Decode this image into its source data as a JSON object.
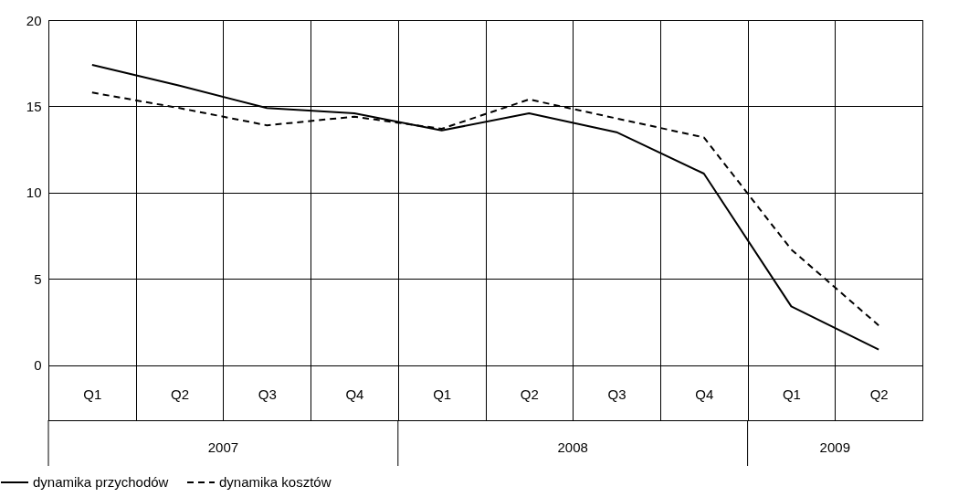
{
  "chart_data": {
    "type": "line",
    "categories": [
      "Q1",
      "Q2",
      "Q3",
      "Q4",
      "Q1",
      "Q2",
      "Q3",
      "Q4",
      "Q1",
      "Q2"
    ],
    "series": [
      {
        "name": "dynamika przychodów",
        "color": "#000000",
        "line_style": "solid",
        "values": [
          17.4,
          16.2,
          14.9,
          14.6,
          13.6,
          14.6,
          13.5,
          11.1,
          3.4,
          0.9
        ]
      },
      {
        "name": "dynamika kosztów",
        "color": "#000000",
        "line_style": "dashed",
        "values": [
          15.8,
          14.9,
          13.9,
          14.4,
          13.7,
          15.4,
          14.3,
          13.2,
          6.7,
          2.3
        ]
      }
    ],
    "annotations": [
      "2007",
      "2008",
      "2009"
    ],
    "ylim": [
      -3.2,
      20
    ],
    "yticks": [
      0,
      5,
      10,
      15,
      20
    ],
    "grid": true,
    "legend": "bottom left",
    "marker": "none"
  }
}
